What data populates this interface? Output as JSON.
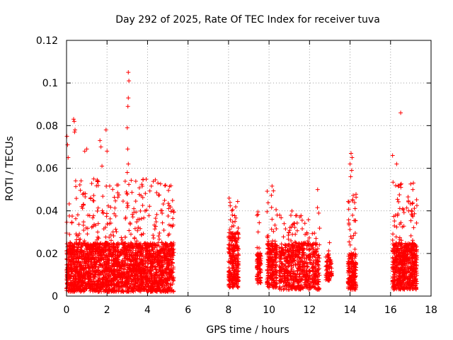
{
  "chart_data": {
    "type": "scatter",
    "title": "Day 292 of 2025, Rate Of TEC Index for receiver tuva",
    "xlabel": "GPS time / hours",
    "ylabel": "ROTI / TECUs",
    "xlim": [
      0,
      18
    ],
    "ylim": [
      0,
      0.12
    ],
    "xticks": [
      "0",
      "2",
      "4",
      "6",
      "8",
      "10",
      "12",
      "14",
      "16",
      "18"
    ],
    "yticks": [
      "0",
      "0.02",
      "0.04",
      "0.06",
      "0.08",
      "0.1",
      "0.12"
    ],
    "grid": true,
    "marker": "+",
    "color": "#ff0000",
    "clusters": [
      {
        "x": [
          0.0,
          5.3
        ],
        "y_base": [
          0.002,
          0.025
        ],
        "y_peak": 0.055,
        "count": 2600
      },
      {
        "x": [
          8.0,
          8.5
        ],
        "y_base": [
          0.004,
          0.03
        ],
        "y_peak": 0.046,
        "count": 280
      },
      {
        "x": [
          9.4,
          9.6
        ],
        "y_base": [
          0.006,
          0.02
        ],
        "y_peak": 0.04,
        "count": 90
      },
      {
        "x": [
          9.9,
          10.4
        ],
        "y_base": [
          0.004,
          0.025
        ],
        "y_peak": 0.052,
        "count": 230
      },
      {
        "x": [
          10.5,
          12.5
        ],
        "y_base": [
          0.003,
          0.025
        ],
        "y_peak": 0.042,
        "count": 700
      },
      {
        "x": [
          12.8,
          13.1
        ],
        "y_base": [
          0.007,
          0.02
        ],
        "y_peak": 0.028,
        "count": 80
      },
      {
        "x": [
          13.9,
          14.3
        ],
        "y_base": [
          0.003,
          0.02
        ],
        "y_peak": 0.05,
        "count": 200
      },
      {
        "x": [
          16.1,
          17.3
        ],
        "y_base": [
          0.003,
          0.025
        ],
        "y_peak": 0.054,
        "count": 650
      }
    ],
    "outliers": [
      {
        "x": 0.02,
        "y": 0.075
      },
      {
        "x": 0.05,
        "y": 0.071
      },
      {
        "x": 0.08,
        "y": 0.065
      },
      {
        "x": 0.35,
        "y": 0.083
      },
      {
        "x": 0.38,
        "y": 0.082
      },
      {
        "x": 0.4,
        "y": 0.077
      },
      {
        "x": 0.42,
        "y": 0.078
      },
      {
        "x": 0.9,
        "y": 0.068
      },
      {
        "x": 1.0,
        "y": 0.069
      },
      {
        "x": 1.65,
        "y": 0.073
      },
      {
        "x": 1.7,
        "y": 0.07
      },
      {
        "x": 1.75,
        "y": 0.061
      },
      {
        "x": 1.95,
        "y": 0.078
      },
      {
        "x": 2.0,
        "y": 0.068
      },
      {
        "x": 3.05,
        "y": 0.105
      },
      {
        "x": 3.08,
        "y": 0.101
      },
      {
        "x": 3.05,
        "y": 0.093
      },
      {
        "x": 3.03,
        "y": 0.089
      },
      {
        "x": 3.0,
        "y": 0.079
      },
      {
        "x": 3.02,
        "y": 0.069
      },
      {
        "x": 3.05,
        "y": 0.062
      },
      {
        "x": 3.0,
        "y": 0.058
      },
      {
        "x": 14.05,
        "y": 0.067
      },
      {
        "x": 14.1,
        "y": 0.065
      },
      {
        "x": 14.0,
        "y": 0.062
      },
      {
        "x": 14.08,
        "y": 0.059
      },
      {
        "x": 14.03,
        "y": 0.056
      },
      {
        "x": 16.1,
        "y": 0.066
      },
      {
        "x": 16.3,
        "y": 0.062
      },
      {
        "x": 16.5,
        "y": 0.086
      },
      {
        "x": 17.1,
        "y": 0.05
      },
      {
        "x": 12.4,
        "y": 0.05
      }
    ]
  }
}
